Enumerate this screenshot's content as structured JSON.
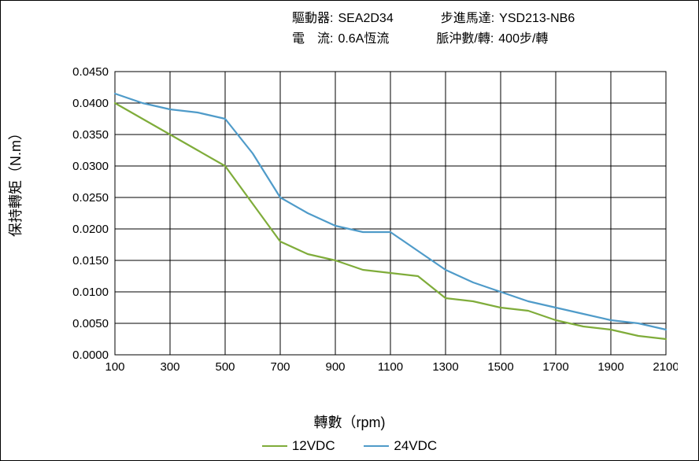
{
  "meta": {
    "driver_label": "驅動器:",
    "driver_value": "SEA2D34",
    "motor_label": "步進馬達:",
    "motor_value": "YSD213-NB6",
    "current_label": "電　流:",
    "current_value": "0.6A恆流",
    "pulse_label": "脈沖數/轉:",
    "pulse_value": "400步/轉"
  },
  "chart": {
    "type": "line",
    "x_axis_label": "轉數（rpm)",
    "y_axis_label": "保持轉矩（N.m）",
    "xlim": [
      100,
      2100
    ],
    "ylim": [
      0,
      0.045
    ],
    "x_ticks": [
      100,
      300,
      500,
      700,
      900,
      1100,
      1300,
      1500,
      1700,
      1900,
      2100
    ],
    "y_ticks": [
      0.0,
      0.005,
      0.01,
      0.015,
      0.02,
      0.025,
      0.03,
      0.035,
      0.04,
      0.045
    ],
    "y_tick_labels": [
      "0.0000",
      "0.0050",
      "0.0100",
      "0.0150",
      "0.0200",
      "0.0250",
      "0.0300",
      "0.0350",
      "0.0400",
      "0.0450"
    ],
    "grid_color": "#000000",
    "grid_width": 1,
    "background_color": "#ffffff",
    "line_width": 2.2,
    "series": [
      {
        "name": "12VDC",
        "color": "#7fac3a",
        "x": [
          100,
          200,
          300,
          400,
          500,
          600,
          700,
          800,
          900,
          1000,
          1100,
          1200,
          1300,
          1400,
          1500,
          1600,
          1700,
          1800,
          1900,
          2000,
          2100
        ],
        "y": [
          0.04,
          0.0375,
          0.035,
          0.0325,
          0.03,
          0.024,
          0.018,
          0.016,
          0.015,
          0.0135,
          0.013,
          0.0125,
          0.009,
          0.0085,
          0.0075,
          0.007,
          0.0055,
          0.0045,
          0.004,
          0.003,
          0.0025
        ]
      },
      {
        "name": "24VDC",
        "color": "#4f9bc9",
        "x": [
          100,
          200,
          300,
          400,
          500,
          600,
          700,
          800,
          900,
          1000,
          1100,
          1200,
          1300,
          1400,
          1500,
          1600,
          1700,
          1800,
          1900,
          2000,
          2100
        ],
        "y": [
          0.0415,
          0.04,
          0.039,
          0.0385,
          0.0375,
          0.032,
          0.025,
          0.0225,
          0.0205,
          0.0195,
          0.0195,
          0.0165,
          0.0135,
          0.0115,
          0.01,
          0.0085,
          0.0075,
          0.0065,
          0.0055,
          0.005,
          0.004
        ]
      }
    ],
    "legend_position": "bottom",
    "title_fontsize": 16,
    "label_fontsize": 18,
    "tick_fontsize": 15
  }
}
